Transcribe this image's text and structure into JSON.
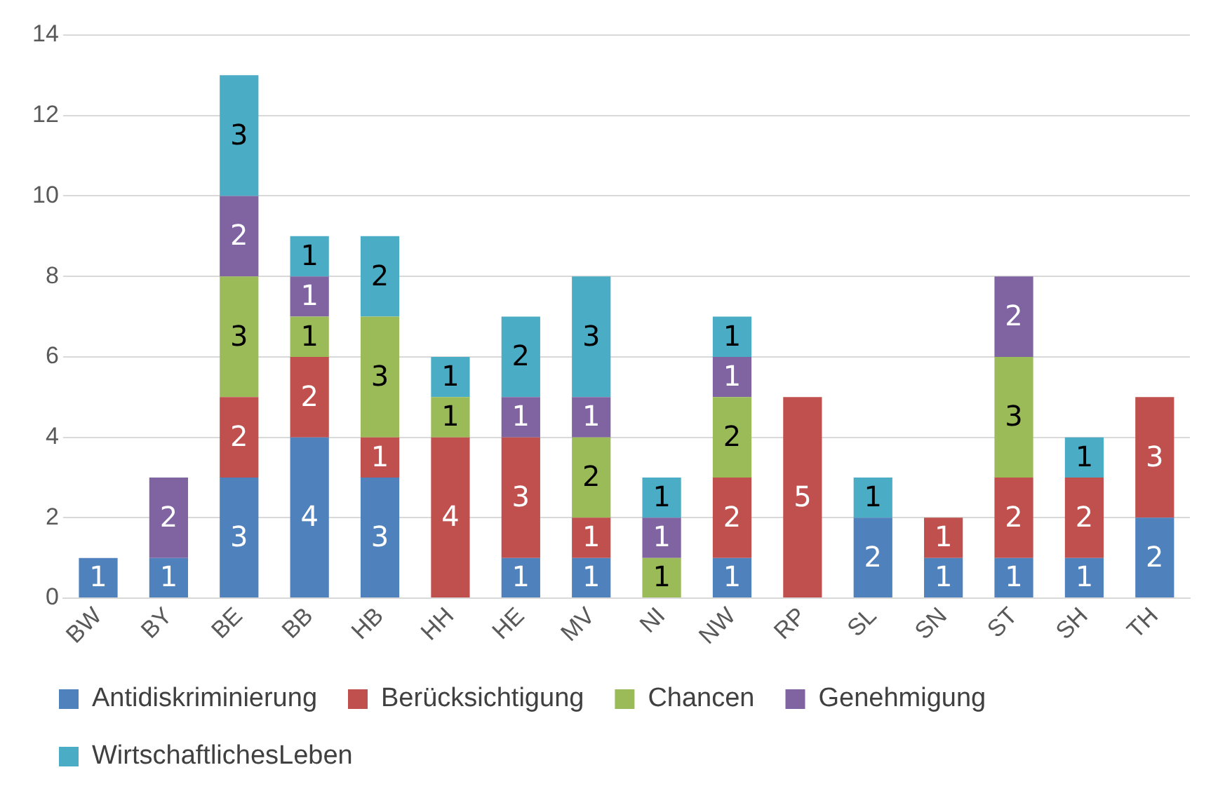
{
  "chart_data": {
    "type": "bar",
    "stacked": true,
    "categories": [
      "BW",
      "BY",
      "BE",
      "BB",
      "HB",
      "HH",
      "HE",
      "MV",
      "NI",
      "NW",
      "RP",
      "SL",
      "SN",
      "ST",
      "SH",
      "TH"
    ],
    "series": [
      {
        "name": "Antidiskriminierung",
        "color": "#4f81bd",
        "values": [
          1,
          1,
          3,
          4,
          3,
          null,
          1,
          1,
          null,
          1,
          null,
          2,
          1,
          1,
          1,
          2
        ]
      },
      {
        "name": "Berücksichtigung",
        "color": "#c0504d",
        "values": [
          null,
          null,
          2,
          2,
          1,
          4,
          3,
          1,
          null,
          2,
          5,
          null,
          1,
          2,
          2,
          3
        ]
      },
      {
        "name": "Chancen",
        "color": "#9bbb59",
        "values": [
          null,
          null,
          3,
          1,
          3,
          1,
          null,
          2,
          1,
          2,
          null,
          null,
          null,
          3,
          null,
          null
        ]
      },
      {
        "name": "Genehmigung",
        "color": "#8064a2",
        "values": [
          null,
          2,
          2,
          1,
          null,
          null,
          1,
          1,
          1,
          1,
          null,
          null,
          null,
          2,
          null,
          null
        ]
      },
      {
        "name": "WirtschaftlichesLeben",
        "color": "#4bacc6",
        "values": [
          null,
          null,
          3,
          1,
          2,
          1,
          2,
          3,
          1,
          1,
          null,
          1,
          null,
          null,
          1,
          null
        ]
      }
    ],
    "ylim": [
      0,
      14
    ],
    "yticks": [
      0,
      2,
      4,
      6,
      8,
      10,
      12,
      14
    ],
    "grid": "y",
    "legend": "bottom",
    "data_labels": true
  }
}
